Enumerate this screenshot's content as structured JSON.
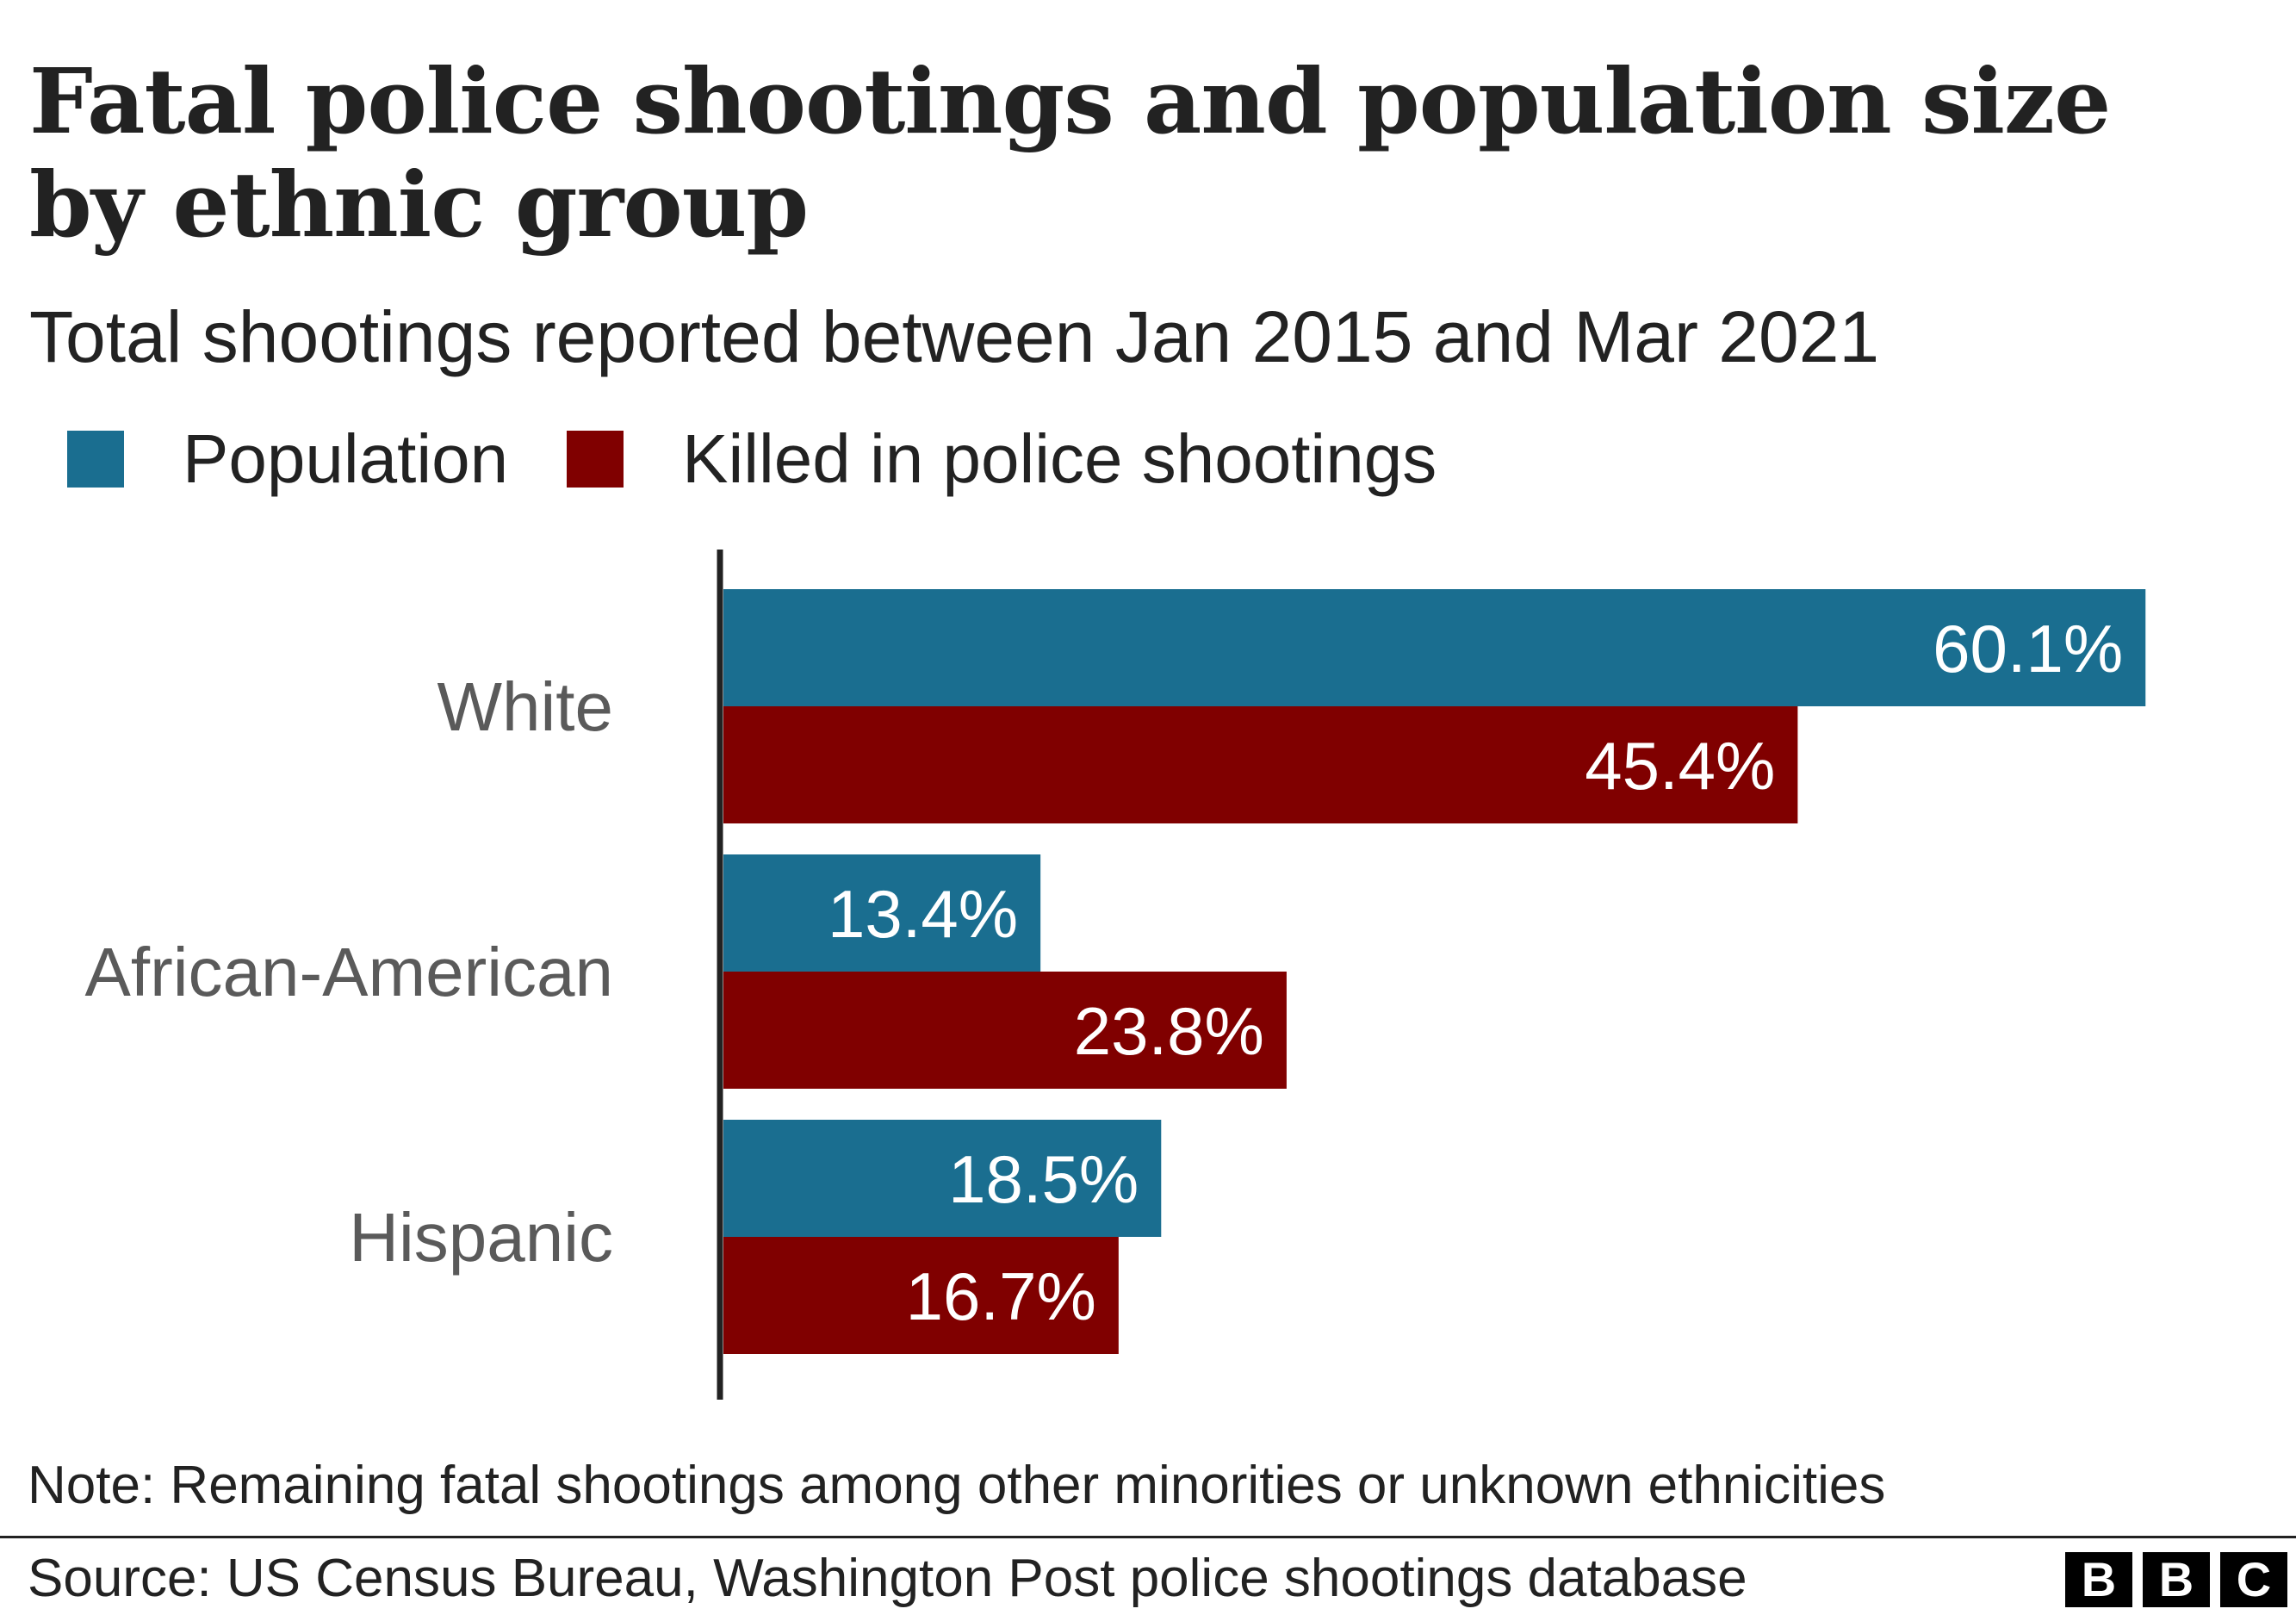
{
  "title": "Fatal police shootings and population size by ethnic group",
  "subtitle": "Total shootings reported between Jan 2015 and Mar 2021",
  "note": "Note: Remaining fatal shootings among other minorities or unknown ethnicities",
  "source": "Source: US Census Bureau, Washington Post police shootings database",
  "logo": {
    "letters": [
      "B",
      "B",
      "C"
    ],
    "color": "#000000"
  },
  "colors": {
    "population": "#1a6e90",
    "killed": "#800000",
    "category_label": "#5a5a5a",
    "value_label": "#ffffff",
    "axis": "#222222"
  },
  "chart_data": {
    "type": "bar",
    "orientation": "horizontal",
    "categories": [
      "White",
      "African-American",
      "Hispanic"
    ],
    "series": [
      {
        "name": "Population",
        "color": "#1a6e90",
        "values": [
          60.1,
          13.4,
          18.5
        ],
        "labels": [
          "60.1%",
          "13.4%",
          "18.5%"
        ]
      },
      {
        "name": "Killed in police shootings",
        "color": "#800000",
        "values": [
          45.4,
          23.8,
          16.7
        ],
        "labels": [
          "45.4%",
          "23.8%",
          "16.7%"
        ]
      }
    ],
    "xlim": [
      0,
      61
    ],
    "grid": false,
    "legend": "top-left"
  }
}
